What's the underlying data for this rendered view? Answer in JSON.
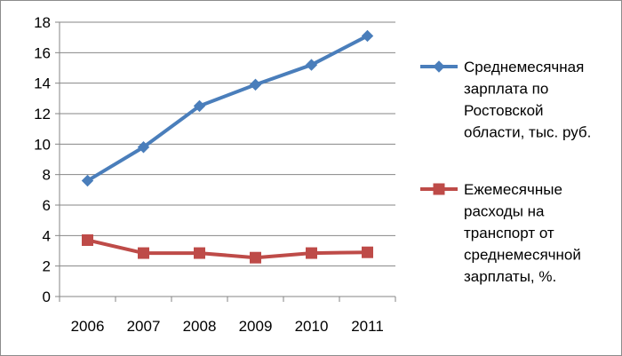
{
  "chart_data": {
    "type": "line",
    "categories": [
      "2006",
      "2007",
      "2008",
      "2009",
      "2010",
      "2011"
    ],
    "ylim": [
      0,
      18
    ],
    "yticks": [
      0,
      2,
      4,
      6,
      8,
      10,
      12,
      14,
      16,
      18
    ],
    "grid": "horizontal",
    "legend_position": "right",
    "title": "",
    "xlabel": "",
    "ylabel": "",
    "series": [
      {
        "name": "Среднемесячная зарплата по Ростовской области, тыс. руб.",
        "legend_lines": [
          "Среднемесячная",
          "зарплата по",
          "Ростовской",
          "области, тыс. руб."
        ],
        "values": [
          7.6,
          9.8,
          12.5,
          13.9,
          15.2,
          17.1
        ],
        "color": "#4a7ebb",
        "marker": "diamond"
      },
      {
        "name": "Ежемесячные расходы на транспорт от среднемесячной зарплаты, %.",
        "legend_lines": [
          "Ежемесячные",
          "расходы на",
          "транспорт от",
          "среднемесячной",
          "зарплаты, %."
        ],
        "values": [
          3.7,
          2.85,
          2.85,
          2.55,
          2.85,
          2.9
        ],
        "color": "#be4b48",
        "marker": "square"
      }
    ]
  }
}
